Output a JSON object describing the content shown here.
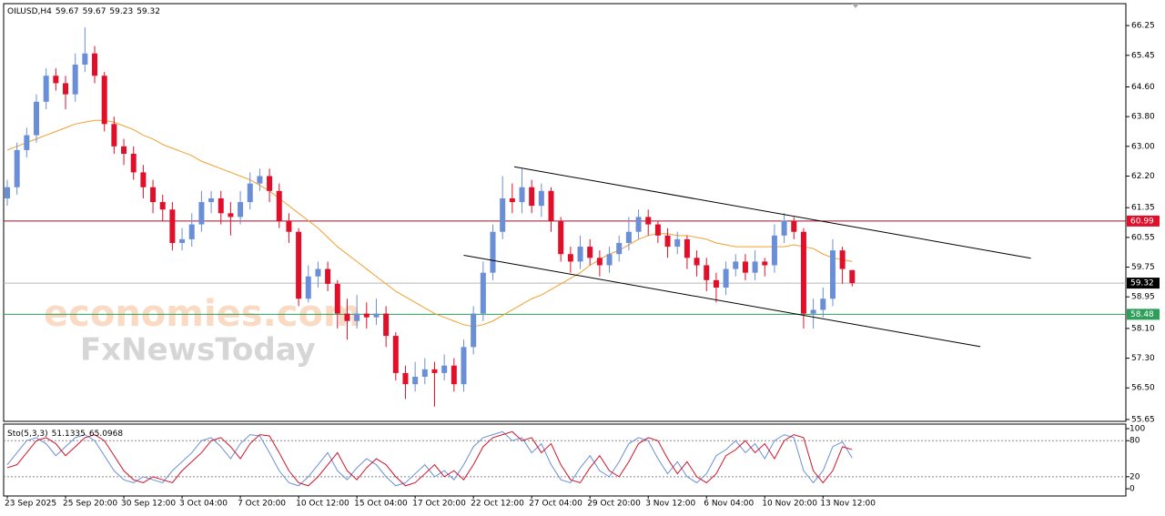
{
  "chart_data": [
    {
      "type": "candlestick",
      "title": "OILUSD,H4",
      "categories": [
        "23 Sep 2025",
        null,
        null,
        null,
        null,
        null,
        "25 Sep 20:00",
        null,
        null,
        null,
        null,
        null,
        "30 Sep 12:00",
        null,
        null,
        null,
        null,
        null,
        "3 Oct 04:00",
        null,
        null,
        null,
        null,
        null,
        "7 Oct 20:00",
        null,
        null,
        null,
        null,
        null,
        "10 Oct 12:00",
        null,
        null,
        null,
        null,
        null,
        "15 Oct 04:00",
        null,
        null,
        null,
        null,
        null,
        "17 Oct 20:00",
        null,
        null,
        null,
        null,
        null,
        "22 Oct 12:00",
        null,
        null,
        null,
        null,
        null,
        "27 Oct 04:00",
        null,
        null,
        null,
        null,
        null,
        "29 Oct 20:00",
        null,
        null,
        null,
        null,
        null,
        "3 Nov 12:00",
        null,
        null,
        null,
        null,
        null,
        "6 Nov 04:00",
        null,
        null,
        null,
        null,
        null,
        "10 Nov 20:00",
        null,
        null,
        null,
        null,
        null,
        "13 Nov 12:00",
        null,
        null,
        null
      ],
      "open": [
        61.6,
        61.9,
        62.9,
        63.3,
        64.2,
        64.9,
        64.7,
        64.4,
        65.2,
        65.5,
        64.9,
        63.6,
        63.0,
        62.8,
        62.3,
        61.9,
        61.5,
        61.3,
        60.4,
        60.5,
        60.9,
        61.5,
        61.6,
        61.2,
        61.1,
        61.5,
        62.0,
        62.2,
        61.8,
        61.0,
        60.7,
        58.9,
        59.5,
        59.7,
        59.3,
        58.5,
        58.3,
        58.5,
        58.4,
        58.5,
        57.9,
        56.9,
        56.6,
        56.8,
        57.0,
        56.9,
        57.1,
        56.6,
        57.6,
        58.5,
        59.6,
        60.7,
        61.6,
        61.5,
        61.9,
        61.4,
        61.8,
        61.0,
        60.1,
        59.9,
        60.3,
        60.0,
        59.8,
        60.1,
        60.4,
        60.7,
        61.1,
        60.9,
        60.6,
        60.3,
        60.5,
        60.0,
        59.8,
        59.4,
        59.2,
        59.7,
        59.9,
        59.6,
        59.9,
        59.8,
        60.6,
        61.0,
        60.7,
        58.5,
        58.6,
        58.9,
        60.2,
        59.67
      ],
      "high": [
        62.1,
        63.1,
        63.5,
        64.4,
        65.1,
        65.1,
        64.9,
        65.5,
        66.2,
        65.7,
        65.0,
        63.8,
        63.2,
        63.0,
        62.5,
        62.1,
        61.7,
        61.5,
        60.8,
        61.2,
        61.8,
        61.8,
        61.8,
        61.5,
        61.8,
        62.3,
        62.4,
        62.4,
        62.0,
        61.2,
        60.8,
        59.8,
        59.9,
        59.9,
        59.4,
        58.9,
        59.0,
        58.8,
        58.9,
        58.7,
        58.0,
        57.1,
        57.2,
        57.3,
        57.2,
        57.4,
        57.3,
        57.8,
        58.7,
        59.9,
        60.9,
        62.2,
        62.0,
        62.4,
        62.1,
        62.0,
        61.9,
        61.1,
        60.3,
        60.6,
        60.5,
        60.2,
        60.3,
        60.6,
        61.1,
        61.3,
        61.3,
        61.0,
        60.8,
        60.7,
        60.6,
        60.2,
        60.0,
        59.6,
        59.9,
        60.1,
        60.1,
        60.2,
        60.0,
        60.9,
        61.2,
        61.1,
        60.8,
        58.9,
        59.2,
        60.5,
        60.3,
        59.67
      ],
      "low": [
        61.4,
        61.7,
        62.7,
        63.1,
        64.0,
        64.5,
        64.0,
        64.2,
        65.0,
        64.7,
        63.4,
        62.8,
        62.5,
        62.1,
        61.6,
        61.2,
        61.0,
        60.2,
        60.2,
        60.3,
        60.7,
        61.2,
        60.9,
        60.6,
        60.9,
        61.3,
        61.8,
        61.5,
        60.8,
        60.4,
        58.7,
        58.8,
        59.2,
        59.1,
        58.1,
        57.8,
        58.1,
        58.1,
        58.2,
        57.6,
        56.7,
        56.2,
        56.4,
        56.6,
        56.0,
        56.7,
        56.4,
        56.4,
        57.4,
        58.3,
        59.4,
        60.5,
        61.2,
        61.2,
        61.2,
        61.1,
        60.7,
        59.9,
        59.6,
        59.7,
        59.8,
        59.5,
        59.6,
        59.9,
        60.2,
        60.5,
        60.6,
        60.4,
        60.0,
        60.1,
        59.7,
        59.5,
        59.1,
        58.8,
        59.0,
        59.5,
        59.4,
        59.4,
        59.5,
        59.6,
        60.4,
        60.5,
        58.1,
        58.1,
        58.4,
        58.7,
        59.3,
        59.23
      ],
      "close": [
        61.9,
        62.9,
        63.3,
        64.2,
        64.9,
        64.7,
        64.4,
        65.2,
        65.5,
        64.9,
        63.6,
        63.0,
        62.8,
        62.3,
        61.9,
        61.5,
        61.3,
        60.4,
        60.5,
        60.9,
        61.5,
        61.6,
        61.2,
        61.1,
        61.5,
        62.0,
        62.2,
        61.8,
        61.0,
        60.7,
        58.9,
        59.5,
        59.7,
        59.3,
        58.5,
        58.3,
        58.5,
        58.4,
        58.5,
        57.9,
        56.9,
        56.6,
        56.8,
        57.0,
        56.9,
        57.1,
        56.6,
        57.6,
        58.5,
        59.6,
        60.7,
        61.6,
        61.5,
        61.9,
        61.4,
        61.8,
        61.0,
        60.1,
        59.9,
        60.3,
        60.0,
        59.8,
        60.1,
        60.4,
        60.7,
        61.1,
        60.9,
        60.6,
        60.3,
        60.5,
        60.0,
        59.8,
        59.4,
        59.2,
        59.7,
        59.9,
        59.6,
        59.9,
        59.8,
        60.6,
        61.0,
        60.7,
        58.5,
        58.6,
        58.9,
        60.2,
        59.7,
        59.32
      ],
      "up_color": "#6a8fd6",
      "down_color": "#e0102a",
      "ma": {
        "color": "#f0a030",
        "values": [
          62.9,
          63.0,
          63.1,
          63.2,
          63.3,
          63.4,
          63.5,
          63.6,
          63.65,
          63.7,
          63.7,
          63.65,
          63.55,
          63.45,
          63.3,
          63.2,
          63.05,
          62.95,
          62.85,
          62.75,
          62.6,
          62.5,
          62.4,
          62.3,
          62.2,
          62.1,
          61.95,
          61.8,
          61.6,
          61.4,
          61.2,
          61.0,
          60.8,
          60.55,
          60.3,
          60.1,
          59.9,
          59.7,
          59.5,
          59.3,
          59.1,
          58.95,
          58.8,
          58.65,
          58.5,
          58.4,
          58.3,
          58.2,
          58.15,
          58.2,
          58.3,
          58.45,
          58.6,
          58.75,
          58.9,
          59.0,
          59.15,
          59.3,
          59.45,
          59.6,
          59.8,
          59.95,
          60.1,
          60.2,
          60.35,
          60.5,
          60.6,
          60.65,
          60.65,
          60.6,
          60.6,
          60.55,
          60.5,
          60.4,
          60.35,
          60.3,
          60.3,
          60.3,
          60.3,
          60.3,
          60.3,
          60.35,
          60.3,
          60.25,
          60.1,
          60.0,
          59.95,
          59.9
        ]
      },
      "ylim": [
        55.6,
        66.84
      ],
      "yticks": [
        66.25,
        65.45,
        {
          "value": 64.6,
          "label": "64.60"
        },
        {
          "value": 63.8,
          "label": "63.80"
        },
        {
          "value": 63,
          "label": "63.00"
        },
        {
          "value": 62.2,
          "label": "62.20"
        },
        61.35,
        60.55,
        59.75,
        58.95,
        {
          "value": 58.1,
          "label": "58.10"
        },
        {
          "value": 57.3,
          "label": "57.30"
        },
        {
          "value": 56.5,
          "label": "56.50"
        },
        55.65
      ],
      "horizontal_lines": [
        {
          "value": 60.99,
          "color": "#a0102a",
          "label_color": "#e0102a"
        },
        {
          "value": 59.32,
          "color": "#b8b8b8",
          "label_color": "#000000"
        },
        {
          "value": 58.48,
          "color": "#2e9e5a",
          "label_color": "#2e9e5a"
        }
      ],
      "trend_lines": [
        {
          "x": [
            52.2,
            105.4
          ],
          "y": [
            62.45,
            59.99
          ],
          "color": "#000000"
        },
        {
          "x": [
            47.0,
            100.2
          ],
          "y": [
            60.07,
            57.61
          ],
          "color": "#000000"
        }
      ],
      "watermarks": [
        "economies.com",
        "FxNewsToday"
      ]
    },
    {
      "type": "line",
      "title": "Sto(5,3,3)",
      "series": [
        {
          "color": "#6a8fd6",
          "values": [
            40,
            60,
            80,
            85,
            75,
            55,
            70,
            85,
            90,
            80,
            55,
            30,
            15,
            10,
            20,
            15,
            10,
            30,
            45,
            60,
            80,
            85,
            70,
            50,
            75,
            90,
            88,
            60,
            30,
            10,
            5,
            20,
            40,
            60,
            30,
            15,
            35,
            50,
            40,
            20,
            5,
            10,
            25,
            40,
            20,
            30,
            15,
            40,
            70,
            85,
            90,
            95,
            80,
            85,
            60,
            75,
            40,
            15,
            10,
            35,
            55,
            30,
            20,
            45,
            75,
            85,
            80,
            50,
            25,
            45,
            20,
            10,
            25,
            55,
            65,
            80,
            60,
            75,
            50,
            80,
            90,
            85,
            30,
            10,
            30,
            70,
            78,
            51.1335
          ]
        },
        {
          "color": "#d0142c",
          "values": [
            35,
            40,
            60,
            80,
            85,
            75,
            55,
            70,
            85,
            90,
            80,
            55,
            30,
            15,
            10,
            20,
            15,
            10,
            30,
            45,
            60,
            80,
            85,
            70,
            50,
            75,
            90,
            88,
            60,
            30,
            10,
            5,
            20,
            40,
            60,
            30,
            15,
            35,
            50,
            40,
            20,
            5,
            10,
            25,
            40,
            20,
            30,
            15,
            40,
            70,
            85,
            90,
            95,
            80,
            85,
            60,
            75,
            40,
            15,
            10,
            35,
            55,
            30,
            20,
            45,
            75,
            85,
            80,
            50,
            25,
            45,
            20,
            10,
            25,
            55,
            65,
            80,
            60,
            75,
            50,
            80,
            90,
            85,
            30,
            10,
            30,
            70,
            65.0968
          ]
        }
      ],
      "ylim": [
        -12,
        107.6
      ],
      "yticks": [
        100,
        80,
        20,
        0
      ],
      "levels": [
        80,
        20
      ]
    }
  ]
}
